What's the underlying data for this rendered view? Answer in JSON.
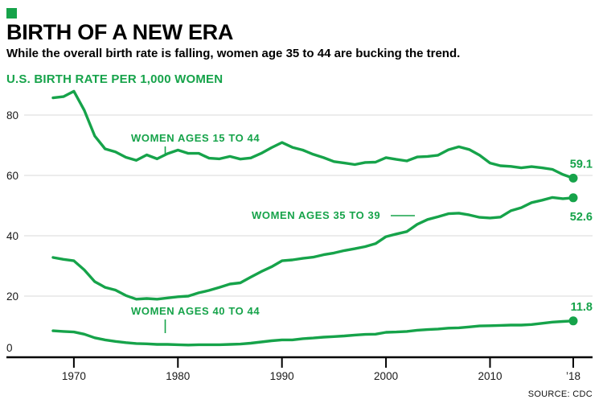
{
  "header": {
    "title": "BIRTH OF A NEW ERA",
    "subtitle": "While the overall birth rate is falling, women age 35 to 44 are bucking the trend."
  },
  "footer": {
    "source": "SOURCE: CDC"
  },
  "colors": {
    "accent_green": "#16a34a",
    "gridline": "#d9d9d9",
    "axis": "#000000",
    "text": "#000000"
  },
  "chart_data": {
    "type": "line",
    "ylabel": "U.S. BIRTH RATE PER 1,000 WOMEN",
    "ylim": [
      0,
      90
    ],
    "grid": "horizontal",
    "legend": "inline-annotations",
    "x": [
      1968,
      1969,
      1970,
      1971,
      1972,
      1973,
      1974,
      1975,
      1976,
      1977,
      1978,
      1979,
      1980,
      1981,
      1982,
      1983,
      1984,
      1985,
      1986,
      1987,
      1988,
      1989,
      1990,
      1991,
      1992,
      1993,
      1994,
      1995,
      1996,
      1997,
      1998,
      1999,
      2000,
      2001,
      2002,
      2003,
      2004,
      2005,
      2006,
      2007,
      2008,
      2009,
      2010,
      2011,
      2012,
      2013,
      2014,
      2015,
      2016,
      2017,
      2018
    ],
    "x_ticks": [
      {
        "year": 1970,
        "label": "1970"
      },
      {
        "year": 1980,
        "label": "1980"
      },
      {
        "year": 1990,
        "label": "1990"
      },
      {
        "year": 2000,
        "label": "2000"
      },
      {
        "year": 2010,
        "label": "2010"
      },
      {
        "year": 2018,
        "label": "’18"
      }
    ],
    "y_ticks": [
      0,
      20,
      40,
      60,
      80
    ],
    "series": [
      {
        "name": "WOMEN AGES 15 TO 44",
        "end_label": "59.1",
        "values": [
          85.7,
          86.1,
          87.9,
          81.6,
          73.1,
          68.8,
          67.8,
          66.0,
          65.0,
          66.8,
          65.5,
          67.2,
          68.4,
          67.3,
          67.3,
          65.7,
          65.5,
          66.3,
          65.4,
          65.8,
          67.3,
          69.2,
          70.9,
          69.3,
          68.4,
          67.0,
          65.9,
          64.6,
          64.1,
          63.6,
          64.3,
          64.4,
          65.9,
          65.3,
          64.8,
          66.1,
          66.3,
          66.7,
          68.5,
          69.5,
          68.6,
          66.7,
          64.1,
          63.2,
          63.0,
          62.5,
          62.9,
          62.5,
          62.0,
          60.3,
          59.1
        ]
      },
      {
        "name": "WOMEN AGES 35 TO 39",
        "end_label": "52.6",
        "values": [
          32.8,
          32.2,
          31.7,
          28.7,
          24.8,
          22.9,
          22.0,
          20.2,
          19.0,
          19.2,
          19.0,
          19.4,
          19.8,
          20.0,
          21.1,
          21.9,
          22.9,
          24.0,
          24.4,
          26.3,
          28.1,
          29.7,
          31.7,
          32.0,
          32.5,
          32.9,
          33.7,
          34.3,
          35.1,
          35.7,
          36.4,
          37.4,
          39.7,
          40.6,
          41.4,
          43.8,
          45.4,
          46.3,
          47.3,
          47.5,
          46.9,
          46.1,
          45.9,
          46.2,
          48.3,
          49.3,
          51.0,
          51.8,
          52.7,
          52.3,
          52.6
        ]
      },
      {
        "name": "WOMEN AGES 40 TO 44",
        "end_label": "11.8",
        "values": [
          8.5,
          8.3,
          8.1,
          7.4,
          6.2,
          5.5,
          5.0,
          4.6,
          4.3,
          4.2,
          4.0,
          4.0,
          3.9,
          3.8,
          3.9,
          3.9,
          3.9,
          4.0,
          4.1,
          4.4,
          4.8,
          5.2,
          5.5,
          5.5,
          5.9,
          6.1,
          6.4,
          6.6,
          6.8,
          7.1,
          7.3,
          7.4,
          8.0,
          8.1,
          8.3,
          8.7,
          8.9,
          9.1,
          9.4,
          9.5,
          9.8,
          10.1,
          10.2,
          10.3,
          10.4,
          10.4,
          10.6,
          11.0,
          11.4,
          11.6,
          11.8
        ]
      }
    ]
  }
}
